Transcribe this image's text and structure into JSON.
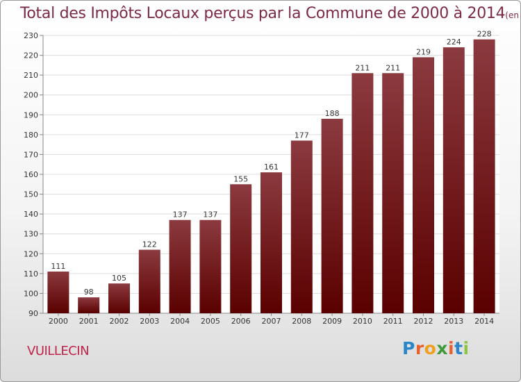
{
  "header": {
    "title": "Total des Impôts Locaux perçus par la Commune de 2000 à 2014",
    "unit": "(en milliers d'€)"
  },
  "footer": {
    "commune": "VUILLECIN",
    "brand": "Proxiti",
    "brand_letters": [
      "P",
      "r",
      "o",
      "x",
      "i",
      "t",
      "i"
    ],
    "brand_colors": [
      "#2b86c8",
      "#e8612c",
      "#f0a020",
      "#3f9a3a",
      "#e8612c",
      "#2b86c8",
      "#8cc63f"
    ]
  },
  "colors": {
    "bar_top": "#8b3a3f",
    "bar_bottom": "#5a0000",
    "grid": "#dcdcdc",
    "axis_text": "#333333"
  },
  "chart_data": {
    "type": "bar",
    "title": "Total des Impôts Locaux perçus par la Commune de 2000 à 2014",
    "ylabel": "en milliers d'€",
    "xlabel": "",
    "categories": [
      "2000",
      "2001",
      "2002",
      "2003",
      "2004",
      "2005",
      "2006",
      "2007",
      "2008",
      "2009",
      "2010",
      "2011",
      "2012",
      "2013",
      "2014"
    ],
    "values": [
      111,
      98,
      105,
      122,
      137,
      137,
      155,
      161,
      177,
      188,
      211,
      211,
      219,
      224,
      228
    ],
    "ylim": [
      90,
      230
    ],
    "yticks": [
      90,
      100,
      110,
      120,
      130,
      140,
      150,
      160,
      170,
      180,
      190,
      200,
      210,
      220,
      230
    ],
    "grid": true
  }
}
